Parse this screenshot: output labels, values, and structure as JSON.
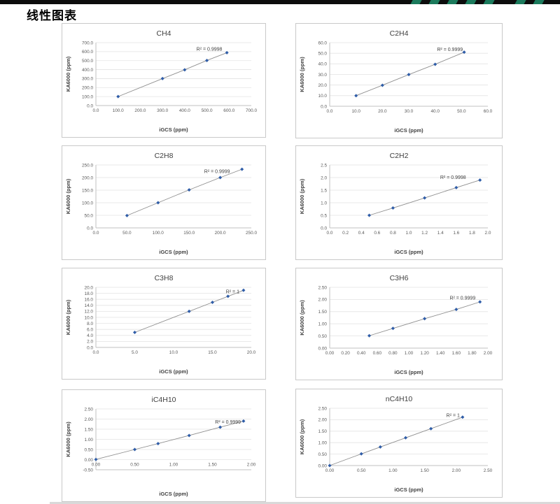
{
  "page": {
    "title": "线性图表",
    "background": "#ffffff",
    "top_bar_color": "#0d0d0d",
    "top_bar_accent_color": "#1b7a5c",
    "marker_color": "#2f5da8",
    "line_color": "#8f8f8f",
    "gridline_color": "#e3e3e3",
    "axis_color": "#c0c0c0",
    "tick_text_color": "#595959",
    "label_text_color": "#3f3f3f"
  },
  "chart_data": [
    {
      "type": "scatter",
      "title": "CH4",
      "xlabel": "iGCS (ppm)",
      "ylabel": "KA6000 (ppm)",
      "r2_label": "R² = 0.9998",
      "r2_pos": [
        0.73,
        0.13
      ],
      "x": [
        100,
        300,
        400,
        500,
        590
      ],
      "y": [
        100,
        300,
        398,
        502,
        588
      ],
      "xlim": [
        0,
        700
      ],
      "ylim": [
        0,
        700
      ],
      "x_ticks": [
        "0.0",
        "100.0",
        "200.0",
        "300.0",
        "400.0",
        "500.0",
        "600.0",
        "700.0"
      ],
      "y_ticks": [
        "0.0",
        "100.0",
        "200.0",
        "300.0",
        "400.0",
        "500.0",
        "600.0",
        "700.0"
      ],
      "grid": true,
      "legend": "none"
    },
    {
      "type": "scatter",
      "title": "C2H4",
      "xlabel": "iGCS (ppm)",
      "ylabel": "KA6000 (ppm)",
      "r2_label": "R² = 0.9999",
      "r2_pos": [
        0.76,
        0.13
      ],
      "x": [
        10,
        20,
        30,
        40,
        51
      ],
      "y": [
        10,
        19.8,
        29.9,
        39.6,
        51
      ],
      "xlim": [
        0,
        60
      ],
      "ylim": [
        0,
        60
      ],
      "x_ticks": [
        "0.0",
        "10.0",
        "20.0",
        "30.0",
        "40.0",
        "50.0",
        "60.0"
      ],
      "y_ticks": [
        "0.0",
        "10.0",
        "20.0",
        "30.0",
        "40.0",
        "50.0",
        "60.0"
      ],
      "grid": true,
      "legend": "none"
    },
    {
      "type": "scatter",
      "title": "C2H8",
      "xlabel": "iGCS (ppm)",
      "ylabel": "KA6000 (ppm)",
      "r2_label": "R² = 0.9999",
      "r2_pos": [
        0.78,
        0.13
      ],
      "x": [
        50,
        100,
        150,
        200,
        235
      ],
      "y": [
        49,
        100,
        151,
        200,
        233
      ],
      "xlim": [
        0,
        250
      ],
      "ylim": [
        0,
        250
      ],
      "x_ticks": [
        "0.0",
        "50.0",
        "100.0",
        "150.0",
        "200.0",
        "250.0"
      ],
      "y_ticks": [
        "0.0",
        "50.0",
        "100.0",
        "150.0",
        "200.0",
        "250.0"
      ],
      "grid": true,
      "legend": "none"
    },
    {
      "type": "scatter",
      "title": "C2H2",
      "xlabel": "iGCS (ppm)",
      "ylabel": "KA6000 (ppm)",
      "r2_label": "R² = 0.9998",
      "r2_pos": [
        0.78,
        0.22
      ],
      "x": [
        0.5,
        0.8,
        1.2,
        1.6,
        1.9
      ],
      "y": [
        0.5,
        0.79,
        1.19,
        1.6,
        1.9
      ],
      "xlim": [
        0,
        2.0
      ],
      "ylim": [
        0,
        2.5
      ],
      "x_ticks": [
        "0.0",
        "0.2",
        "0.4",
        "0.6",
        "0.8",
        "1.0",
        "1.2",
        "1.4",
        "1.6",
        "1.8",
        "2.0"
      ],
      "y_ticks": [
        "0.0",
        "0.5",
        "1.0",
        "1.5",
        "2.0",
        "2.5"
      ],
      "grid": true,
      "legend": "none"
    },
    {
      "type": "scatter",
      "title": "C3H8",
      "xlabel": "iGCS (ppm)",
      "ylabel": "KA6000 (ppm)",
      "r2_label": "R² = 1",
      "r2_pos": [
        0.88,
        0.1
      ],
      "x": [
        5,
        12,
        15,
        17,
        19
      ],
      "y": [
        5,
        12,
        15,
        17,
        19
      ],
      "xlim": [
        0,
        20
      ],
      "ylim": [
        0,
        20
      ],
      "x_ticks": [
        "0.0",
        "5.0",
        "10.0",
        "15.0",
        "20.0"
      ],
      "y_ticks": [
        "0.0",
        "2.0",
        "4.0",
        "6.0",
        "8.0",
        "10.0",
        "12.0",
        "14.0",
        "16.0",
        "18.0",
        "20.0"
      ],
      "grid": true,
      "legend": "none"
    },
    {
      "type": "scatter",
      "title": "C3H6",
      "xlabel": "iGCS (ppm)",
      "ylabel": "KA6000 (ppm)",
      "r2_label": "R² = 0.9999",
      "r2_pos": [
        0.84,
        0.2
      ],
      "x": [
        0.5,
        0.8,
        1.2,
        1.6,
        1.9
      ],
      "y": [
        0.51,
        0.81,
        1.21,
        1.59,
        1.9
      ],
      "xlim": [
        0,
        2.0
      ],
      "ylim": [
        0,
        2.5
      ],
      "x_ticks": [
        "0.00",
        "0.20",
        "0.40",
        "0.60",
        "0.80",
        "1.00",
        "1.20",
        "1.40",
        "1.60",
        "1.80",
        "2.00"
      ],
      "y_ticks": [
        "0.00",
        "0.50",
        "1.00",
        "1.50",
        "2.00",
        "2.50"
      ],
      "grid": true,
      "legend": "none"
    },
    {
      "type": "scatter",
      "title": "iC4H10",
      "xlabel": "iGCS (ppm)",
      "ylabel": "KA6000 (ppm)",
      "r2_label": "R² = 0.9999",
      "r2_pos": [
        0.85,
        0.24
      ],
      "x": [
        0,
        0.5,
        0.8,
        1.2,
        1.6,
        1.9
      ],
      "y": [
        0.01,
        0.5,
        0.79,
        1.19,
        1.6,
        1.9
      ],
      "xlim": [
        0,
        2.0
      ],
      "ylim": [
        -0.5,
        2.5
      ],
      "x_axis_cross": 0,
      "x_ticks": [
        "0.00",
        "0.50",
        "1.00",
        "1.50",
        "2.00"
      ],
      "y_ticks": [
        "-0.50",
        "0.00",
        "0.50",
        "1.00",
        "1.50",
        "2.00",
        "2.50"
      ],
      "grid": true,
      "legend": "none"
    },
    {
      "type": "scatter",
      "title": "nC4H10",
      "xlabel": "iGCS (ppm)",
      "ylabel": "KA6000 (ppm)",
      "r2_label": "R² = 1",
      "r2_pos": [
        0.78,
        0.15
      ],
      "x": [
        0,
        0.5,
        0.8,
        1.2,
        1.6,
        2.1
      ],
      "y": [
        0,
        0.51,
        0.81,
        1.21,
        1.61,
        2.11
      ],
      "xlim": [
        0,
        2.5
      ],
      "ylim": [
        0,
        2.5
      ],
      "x_ticks": [
        "0.00",
        "0.50",
        "1.00",
        "1.50",
        "2.00",
        "2.50"
      ],
      "y_ticks": [
        "0.00",
        "0.50",
        "1.00",
        "1.50",
        "2.00",
        "2.50"
      ],
      "grid": true,
      "legend": "none"
    }
  ]
}
